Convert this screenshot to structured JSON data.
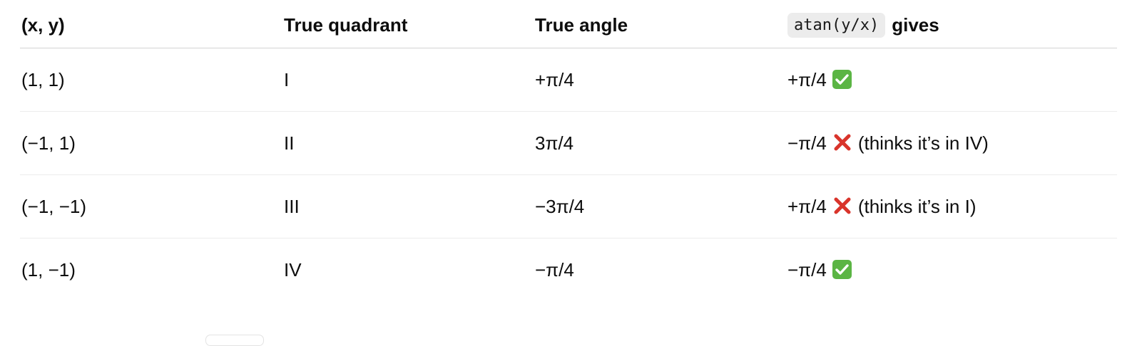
{
  "table": {
    "headers": {
      "col0": "(x, y)",
      "col1": "True quadrant",
      "col2": "True angle",
      "col3_code": "atan(y/x)",
      "col3_suffix": "gives"
    },
    "rows": [
      {
        "point": "(1, 1)",
        "quadrant": "I",
        "angle": "+π/4",
        "result": "+π/4",
        "status_icon": "check-icon",
        "note": ""
      },
      {
        "point": "(−1, 1)",
        "quadrant": "II",
        "angle": "3π/4",
        "result": "−π/4",
        "status_icon": "cross-icon",
        "note": "(thinks it’s in IV)"
      },
      {
        "point": "(−1, −1)",
        "quadrant": "III",
        "angle": "−3π/4",
        "result": "+π/4",
        "status_icon": "cross-icon",
        "note": "(thinks it’s in I)"
      },
      {
        "point": "(1, −1)",
        "quadrant": "IV",
        "angle": "−π/4",
        "result": "−π/4",
        "status_icon": "check-icon",
        "note": ""
      }
    ]
  },
  "colors": {
    "check": "#5bb544",
    "cross": "#d9342b"
  }
}
